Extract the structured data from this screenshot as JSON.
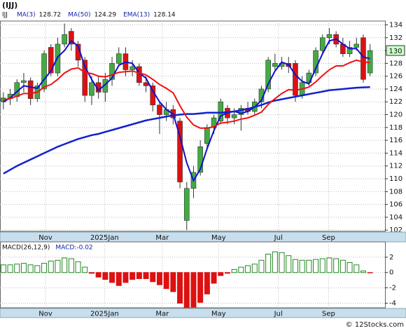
{
  "title": "(IJJ)",
  "footer": "© 12Stocks.com",
  "chart_data": [
    {
      "type": "candlestick",
      "name": "IJJ",
      "up_color": "#44aa44",
      "down_color": "#dd1111",
      "xlim": [
        -0.5,
        56.2
      ],
      "ylim": [
        101.8,
        134.6
      ],
      "yticks": [
        102,
        104,
        106,
        108,
        110,
        112,
        114,
        116,
        118,
        120,
        122,
        124,
        126,
        128,
        130,
        132,
        134
      ],
      "xticks": [
        {
          "value": 6.2,
          "label": "Nov"
        },
        {
          "value": 14.9,
          "label": "2025Jan"
        },
        {
          "value": 23.4,
          "label": "Mar"
        },
        {
          "value": 31.7,
          "label": "May"
        },
        {
          "value": 40.5,
          "label": "Jul"
        },
        {
          "value": 47.9,
          "label": "Sep"
        }
      ],
      "grid": true,
      "last_price": 130,
      "open": [
        122.0,
        122.5,
        122.8,
        125.0,
        125.3,
        122.5,
        124.0,
        130.5,
        126.5,
        131.0,
        133.0,
        131.0,
        128.5,
        123.0,
        125.0,
        123.5,
        125.5,
        128.0,
        129.5,
        127.0,
        127.5,
        125.0,
        124.5,
        121.5,
        120.0,
        120.8,
        119.0,
        103.5,
        108.5,
        111.0,
        115.5,
        118.0,
        119.0,
        121.0,
        119.5,
        120.0,
        121.0,
        120.5,
        122.0,
        124.0,
        127.5,
        127.5,
        128.0,
        128.0,
        123.0,
        125.0,
        126.5,
        130.0,
        132.0,
        132.5,
        131.0,
        129.5,
        130.5,
        132.0,
        126.5
      ],
      "high": [
        123.5,
        124.0,
        125.5,
        126.5,
        125.8,
        125.0,
        130.0,
        131.0,
        132.0,
        134.2,
        133.5,
        131.5,
        129.0,
        126.0,
        126.0,
        126.5,
        129.0,
        130.5,
        130.5,
        128.5,
        128.0,
        126.0,
        125.0,
        122.0,
        122.0,
        121.5,
        119.5,
        109.5,
        112.0,
        116.0,
        118.5,
        120.0,
        122.5,
        121.5,
        121.0,
        121.5,
        122.0,
        122.5,
        124.5,
        129.0,
        129.5,
        129.0,
        129.0,
        128.5,
        126.0,
        127.0,
        130.5,
        132.5,
        133.5,
        133.0,
        132.0,
        131.5,
        132.0,
        132.5,
        131.0
      ],
      "low": [
        120.8,
        121.5,
        122.0,
        123.5,
        121.5,
        122.0,
        123.5,
        126.0,
        126.0,
        130.5,
        130.0,
        127.5,
        122.0,
        121.5,
        122.5,
        122.0,
        124.5,
        127.5,
        126.0,
        126.0,
        124.5,
        123.5,
        120.5,
        117.0,
        119.0,
        118.5,
        108.5,
        102.0,
        107.0,
        110.5,
        114.5,
        117.0,
        118.5,
        118.5,
        118.5,
        117.5,
        120.0,
        120.0,
        121.0,
        123.5,
        127.0,
        127.0,
        126.5,
        122.0,
        122.5,
        124.5,
        126.0,
        129.5,
        131.0,
        130.5,
        129.0,
        129.0,
        130.0,
        125.0,
        126.0
      ],
      "close": [
        122.6,
        123.2,
        125.0,
        125.3,
        122.5,
        124.5,
        129.5,
        126.5,
        131.0,
        132.5,
        131.0,
        128.5,
        123.0,
        125.0,
        123.5,
        125.5,
        128.0,
        129.5,
        127.0,
        127.5,
        125.0,
        124.5,
        121.5,
        120.0,
        120.8,
        119.5,
        109.5,
        108.5,
        111.0,
        115.0,
        118.0,
        119.5,
        122.0,
        119.5,
        120.0,
        121.0,
        120.5,
        122.0,
        124.0,
        128.5,
        128.0,
        128.0,
        127.5,
        123.0,
        125.0,
        126.5,
        130.0,
        132.0,
        132.5,
        131.0,
        129.5,
        130.5,
        131.0,
        125.5,
        130.0
      ],
      "series": [
        {
          "name": "MA(3)",
          "legend_value": "128.72",
          "color": "#1111cc",
          "width": 2,
          "values": [
            122.0,
            122.6,
            123.6,
            124.5,
            124.3,
            124.1,
            125.5,
            126.8,
            129.0,
            130.0,
            131.5,
            130.7,
            127.5,
            125.5,
            123.8,
            124.7,
            125.7,
            127.7,
            128.2,
            128.0,
            126.5,
            125.7,
            123.7,
            122.0,
            120.8,
            120.1,
            116.6,
            112.5,
            109.7,
            111.5,
            114.7,
            117.5,
            119.8,
            120.3,
            120.5,
            120.2,
            120.5,
            121.2,
            122.2,
            124.8,
            126.8,
            128.2,
            127.8,
            126.2,
            125.2,
            124.8,
            127.2,
            129.5,
            131.5,
            131.8,
            131.0,
            130.3,
            130.3,
            129.0,
            128.72
          ]
        },
        {
          "name": "MA(50)",
          "legend_value": "124.29",
          "color": "#1122cc",
          "width": 2.5,
          "values": [
            110.8,
            111.4,
            112.0,
            112.5,
            113.0,
            113.5,
            114.0,
            114.5,
            115.0,
            115.4,
            115.8,
            116.2,
            116.5,
            116.8,
            117.0,
            117.3,
            117.6,
            117.9,
            118.2,
            118.5,
            118.8,
            119.1,
            119.3,
            119.5,
            119.7,
            119.9,
            120.0,
            120.1,
            120.1,
            120.2,
            120.3,
            120.3,
            120.3,
            120.4,
            120.5,
            120.7,
            120.9,
            121.2,
            121.5,
            121.9,
            122.2,
            122.4,
            122.6,
            122.8,
            123.0,
            123.2,
            123.4,
            123.6,
            123.8,
            123.9,
            124.0,
            124.1,
            124.2,
            124.25,
            124.29
          ]
        },
        {
          "name": "EMA(13)",
          "legend_value": "128.14",
          "color": "#ee1111",
          "width": 2,
          "values": [
            122.3,
            122.5,
            122.9,
            123.3,
            123.3,
            123.5,
            124.3,
            124.7,
            125.5,
            126.5,
            127.1,
            127.3,
            126.6,
            126.4,
            126.0,
            125.9,
            126.2,
            126.6,
            126.7,
            126.8,
            126.5,
            126.2,
            125.5,
            124.7,
            124.1,
            123.4,
            121.4,
            119.6,
            118.4,
            117.9,
            117.9,
            118.1,
            118.7,
            118.8,
            119.0,
            119.3,
            119.5,
            119.9,
            120.4,
            121.6,
            122.5,
            123.3,
            123.9,
            123.8,
            124.0,
            124.3,
            125.1,
            126.1,
            127.0,
            127.6,
            127.6,
            128.1,
            128.5,
            128.2,
            128.14
          ]
        }
      ]
    },
    {
      "type": "bar",
      "name": "MACD(26,12,9)",
      "value_text": "MACD:-0.02",
      "up_color": "#228822",
      "down_color": "#dd1111",
      "xlim": [
        -0.5,
        56.2
      ],
      "ylim": [
        -4.6,
        4
      ],
      "yticks": [
        -4,
        -2,
        0,
        2
      ],
      "xticks": [
        {
          "value": 6.2,
          "label": "Nov"
        },
        {
          "value": 14.9,
          "label": "2025Jan"
        },
        {
          "value": 23.4,
          "label": "Mar"
        },
        {
          "value": 31.7,
          "label": "May"
        },
        {
          "value": 40.5,
          "label": "Jul"
        },
        {
          "value": 47.9,
          "label": "Sep"
        }
      ],
      "grid": true,
      "values": [
        1.0,
        1.0,
        1.1,
        1.2,
        1.0,
        0.9,
        1.2,
        1.5,
        1.6,
        1.9,
        1.8,
        1.4,
        0.7,
        -0.1,
        -0.6,
        -0.9,
        -1.3,
        -1.7,
        -1.3,
        -0.9,
        -0.8,
        -0.8,
        -1.2,
        -1.6,
        -2.1,
        -2.5,
        -4.0,
        -4.6,
        -4.5,
        -3.9,
        -2.8,
        -1.4,
        -0.4,
        -0.1,
        0.4,
        0.7,
        0.9,
        1.1,
        1.6,
        2.4,
        2.7,
        2.6,
        2.2,
        1.7,
        1.6,
        1.6,
        1.7,
        1.8,
        1.9,
        1.8,
        1.6,
        1.3,
        1.0,
        0.2,
        -0.02
      ]
    }
  ]
}
